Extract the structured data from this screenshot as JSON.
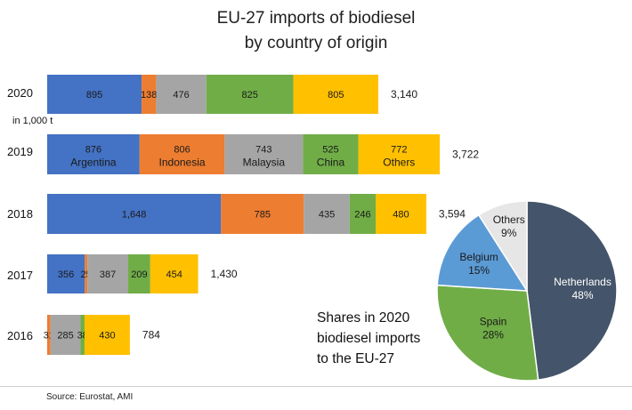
{
  "title_line1": "EU-27 imports of biodiesel",
  "title_line2": "by country of origin",
  "unit_label": "in 1,000 t",
  "source": "Source: Eurostat, AMI",
  "shares_text": [
    "Shares in 2020",
    "biodiesel imports",
    "to the EU-27"
  ],
  "colors": {
    "Argentina": "#4472C4",
    "Indonesia": "#ED7D31",
    "Malaysia": "#A5A5A5",
    "China": "#70AD47",
    "Others": "#FFC000",
    "Netherlands": "#44546A",
    "Spain": "#70AD47",
    "Belgium": "#5B9BD5",
    "Others_pie": "#E7E6E6"
  },
  "chart_data": [
    {
      "type": "bar",
      "orientation": "horizontal",
      "stacked": true,
      "categories": [
        "2020",
        "2019",
        "2018",
        "2017",
        "2016"
      ],
      "series": [
        {
          "name": "Argentina",
          "values": [
            895,
            876,
            1648,
            356,
            0
          ]
        },
        {
          "name": "Indonesia",
          "values": [
            138,
            806,
            785,
            25,
            31
          ]
        },
        {
          "name": "Malaysia",
          "values": [
            476,
            743,
            435,
            387,
            285
          ]
        },
        {
          "name": "China",
          "values": [
            825,
            525,
            246,
            209,
            38
          ]
        },
        {
          "name": "Others",
          "values": [
            805,
            772,
            480,
            454,
            430
          ]
        }
      ],
      "segment_labels": [
        [
          "895",
          "138",
          "476",
          "825",
          "805"
        ],
        [
          "876",
          "806",
          "743",
          "525",
          "772"
        ],
        [
          "1,648",
          "785",
          "435",
          "246",
          "480"
        ],
        [
          "356",
          "25",
          "387",
          "209",
          "454"
        ],
        [
          "",
          "31",
          "285",
          "38",
          "430"
        ]
      ],
      "totals": [
        "3,140",
        "3,722",
        "3,594",
        "1,430",
        "784"
      ],
      "legend_in_row": "2019",
      "legend_names": [
        "Argentina",
        "Indonesia",
        "Malaysia",
        "China",
        "Others"
      ],
      "ylabel": "in 1,000 t"
    },
    {
      "type": "pie",
      "slices": [
        {
          "name": "Netherlands",
          "value": 48,
          "label": "Netherlands",
          "pct_label": "48%"
        },
        {
          "name": "Spain",
          "value": 28,
          "label": "Spain",
          "pct_label": "28%"
        },
        {
          "name": "Belgium",
          "value": 15,
          "label": "Belgium",
          "pct_label": "15%"
        },
        {
          "name": "Others",
          "value": 9,
          "label": "Others",
          "pct_label": "9%"
        }
      ]
    }
  ]
}
